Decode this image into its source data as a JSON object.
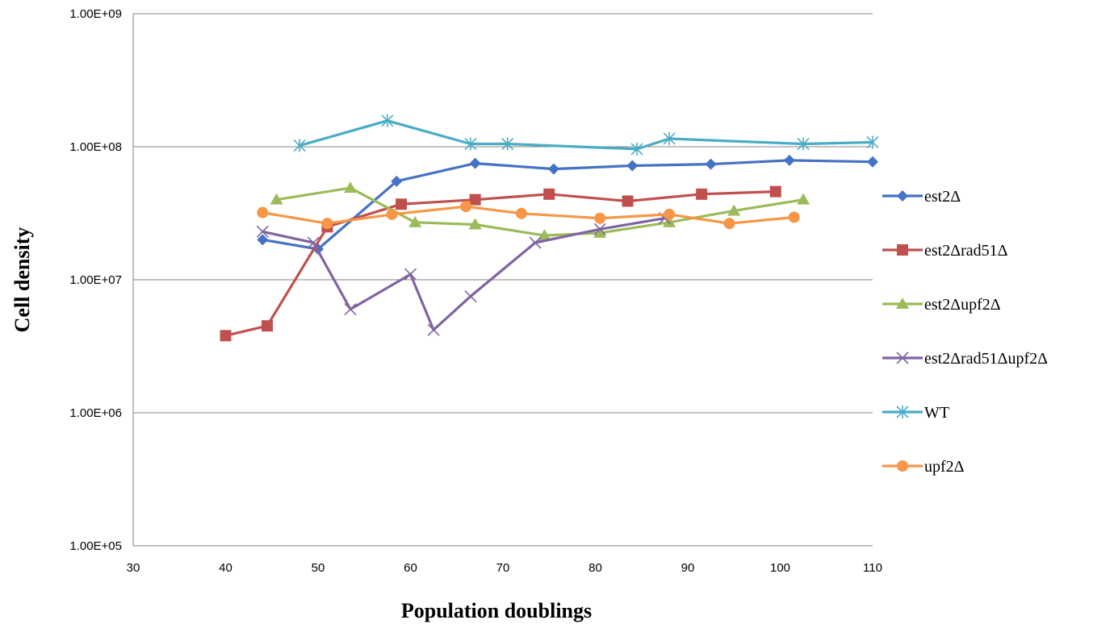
{
  "chart_data": {
    "type": "line",
    "title": "",
    "xlabel": "Population doublings",
    "ylabel": "Cell density",
    "xlim": [
      30,
      110
    ],
    "ylim": [
      100000,
      1000000000
    ],
    "yscale": "log",
    "xticks": [
      30,
      40,
      50,
      60,
      70,
      80,
      90,
      100,
      110
    ],
    "xtick_labels": [
      "30",
      "40",
      "50",
      "60",
      "70",
      "80",
      "90",
      "100",
      "110"
    ],
    "yticks": [
      100000,
      1000000,
      10000000,
      100000000,
      1000000000
    ],
    "ytick_labels": [
      "1.00E+05",
      "1.00E+06",
      "1.00E+07",
      "1.00E+08",
      "1.00E+09"
    ],
    "grid": "horizontal",
    "legend_position": "right",
    "series": [
      {
        "name": "est2Δ",
        "color": "#4472C4",
        "marker": "diamond",
        "points": [
          [
            44,
            20000000
          ],
          [
            50,
            17000000
          ],
          [
            58.5,
            55000000
          ],
          [
            67,
            75000000
          ],
          [
            75.5,
            68000000
          ],
          [
            84,
            72000000
          ],
          [
            92.5,
            74000000
          ],
          [
            101,
            79000000
          ],
          [
            110,
            77000000
          ]
        ]
      },
      {
        "name": "est2Δrad51Δ",
        "color": "#C0504D",
        "marker": "square",
        "points": [
          [
            40,
            3800000
          ],
          [
            44.5,
            4500000
          ],
          [
            51,
            25000000
          ],
          [
            59,
            37000000
          ],
          [
            67,
            40000000
          ],
          [
            75,
            44000000
          ],
          [
            83.5,
            39000000
          ],
          [
            91.5,
            44000000
          ],
          [
            99.5,
            46000000
          ]
        ]
      },
      {
        "name": "est2Δupf2Δ",
        "color": "#9BBB59",
        "marker": "triangle",
        "points": [
          [
            45.5,
            40000000
          ],
          [
            53.5,
            49000000
          ],
          [
            60.5,
            27000000
          ],
          [
            67,
            26000000
          ],
          [
            74.5,
            21500000
          ],
          [
            80.5,
            22500000
          ],
          [
            88,
            27000000
          ],
          [
            95,
            33000000
          ],
          [
            102.5,
            40000000
          ]
        ]
      },
      {
        "name": "est2Δrad51Δupf2Δ",
        "color": "#8064A2",
        "marker": "x",
        "points": [
          [
            44,
            23000000
          ],
          [
            49.5,
            19000000
          ],
          [
            53.5,
            6000000
          ],
          [
            60,
            11000000
          ],
          [
            62.5,
            4200000
          ],
          [
            66.5,
            7500000
          ],
          [
            73.5,
            19000000
          ],
          [
            80.5,
            24000000
          ],
          [
            87.5,
            29000000
          ]
        ]
      },
      {
        "name": "WT",
        "color": "#4BACC6",
        "marker": "star",
        "points": [
          [
            48,
            102000000
          ],
          [
            57.5,
            157000000
          ],
          [
            66.5,
            105000000
          ],
          [
            70.5,
            105000000
          ],
          [
            84.5,
            96000000
          ],
          [
            88,
            115000000
          ],
          [
            102.5,
            105000000
          ],
          [
            110,
            108000000
          ]
        ]
      },
      {
        "name": "upf2Δ",
        "color": "#F79646",
        "marker": "circle",
        "points": [
          [
            44,
            32000000
          ],
          [
            51,
            26500000
          ],
          [
            58,
            31000000
          ],
          [
            66,
            35500000
          ],
          [
            72,
            31500000
          ],
          [
            80.5,
            29000000
          ],
          [
            88,
            31000000
          ],
          [
            94.5,
            26500000
          ],
          [
            101.5,
            29500000
          ]
        ]
      }
    ]
  }
}
